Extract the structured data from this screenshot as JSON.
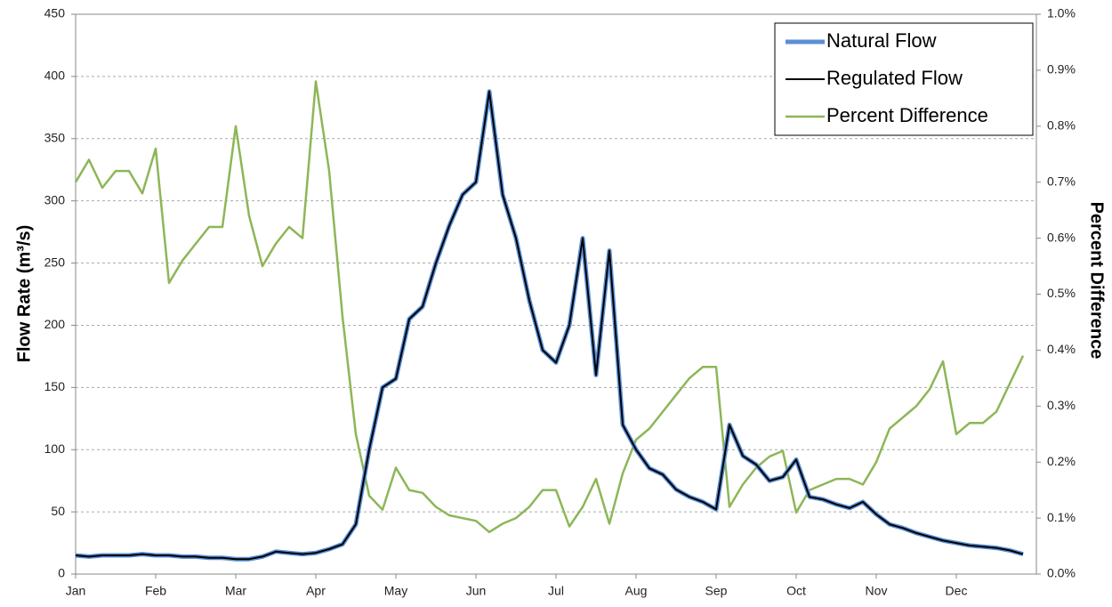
{
  "chart_data": {
    "type": "line",
    "y_label": "Flow Rate (m³/s)",
    "y2_label": "Percent Difference",
    "categories": [
      "Jan",
      null,
      null,
      null,
      null,
      null,
      "Feb",
      null,
      null,
      null,
      null,
      null,
      "Mar",
      null,
      null,
      null,
      null,
      null,
      "Apr",
      null,
      null,
      null,
      null,
      null,
      "May",
      null,
      null,
      null,
      null,
      null,
      "Jun",
      null,
      null,
      null,
      null,
      null,
      "Jul",
      null,
      null,
      null,
      null,
      null,
      "Aug",
      null,
      null,
      null,
      null,
      null,
      "Sep",
      null,
      null,
      null,
      null,
      null,
      "Oct",
      null,
      null,
      null,
      null,
      null,
      "Nov",
      null,
      null,
      null,
      null,
      null,
      "Dec",
      null,
      null,
      null,
      null,
      null
    ],
    "series": [
      {
        "name": "Natural Flow",
        "color": "#5b8fd6",
        "width": 5,
        "values": [
          15,
          14,
          15,
          15,
          15,
          16,
          15,
          15,
          14,
          14,
          13,
          13,
          12,
          12,
          14,
          18,
          17,
          16,
          17,
          20,
          24,
          40,
          100,
          150,
          157,
          205,
          215,
          250,
          280,
          305,
          315,
          388,
          305,
          270,
          220,
          180,
          170,
          200,
          270,
          160,
          260,
          120,
          100,
          85,
          80,
          68,
          62,
          58,
          52,
          120,
          95,
          88,
          75,
          78,
          92,
          62,
          60,
          56,
          53,
          58,
          48,
          40,
          37,
          33,
          30,
          27,
          25,
          23,
          22,
          21,
          19,
          16
        ]
      },
      {
        "name": "Regulated Flow",
        "color": "#000000",
        "width": 2,
        "values": [
          15,
          14,
          15,
          15,
          15,
          16,
          15,
          15,
          14,
          14,
          13,
          13,
          12,
          12,
          14,
          18,
          17,
          16,
          17,
          20,
          24,
          40,
          100,
          150,
          157,
          205,
          215,
          250,
          280,
          305,
          315,
          388,
          305,
          270,
          220,
          180,
          170,
          200,
          270,
          160,
          260,
          120,
          100,
          85,
          80,
          68,
          62,
          58,
          52,
          120,
          95,
          88,
          75,
          78,
          92,
          62,
          60,
          56,
          53,
          58,
          48,
          40,
          37,
          33,
          30,
          27,
          25,
          23,
          22,
          21,
          19,
          16
        ]
      },
      {
        "name": "Percent Difference",
        "color": "#8db657",
        "width": 2.5,
        "axis": "y2",
        "values": [
          0.7,
          0.74,
          0.69,
          0.72,
          0.72,
          0.68,
          0.76,
          0.52,
          0.56,
          0.59,
          0.62,
          0.62,
          0.8,
          0.64,
          0.55,
          0.59,
          0.62,
          0.6,
          0.88,
          0.72,
          0.46,
          0.25,
          0.14,
          0.115,
          0.19,
          0.15,
          0.145,
          0.12,
          0.105,
          0.1,
          0.095,
          0.075,
          0.09,
          0.1,
          0.12,
          0.15,
          0.15,
          0.085,
          0.12,
          0.17,
          0.09,
          0.18,
          0.24,
          0.26,
          0.29,
          0.32,
          0.35,
          0.37,
          0.37,
          0.12,
          0.16,
          0.19,
          0.21,
          0.22,
          0.11,
          0.15,
          0.16,
          0.17,
          0.17,
          0.16,
          0.2,
          0.26,
          0.28,
          0.3,
          0.33,
          0.38,
          0.25,
          0.27,
          0.27,
          0.29,
          0.34,
          0.39
        ]
      }
    ],
    "ylim": [
      0,
      450
    ],
    "yticks": [
      0,
      50,
      100,
      150,
      200,
      250,
      300,
      350,
      400,
      450
    ],
    "y2lim": [
      0,
      1.0
    ],
    "y2ticks": [
      {
        "value": 0,
        "label": "0.0%"
      },
      {
        "value": 0.1,
        "label": "0.1%"
      },
      {
        "value": 0.2,
        "label": "0.2%"
      },
      {
        "value": 0.3,
        "label": "0.3%"
      },
      {
        "value": 0.4,
        "label": "0.4%"
      },
      {
        "value": 0.5,
        "label": "0.5%"
      },
      {
        "value": 0.6,
        "label": "0.6%"
      },
      {
        "value": 0.7,
        "label": "0.7%"
      },
      {
        "value": 0.8,
        "label": "0.8%"
      },
      {
        "value": 0.9,
        "label": "0.9%"
      },
      {
        "value": 1.0,
        "label": "1.0%"
      }
    ],
    "grid": true,
    "legend": "top-right"
  }
}
